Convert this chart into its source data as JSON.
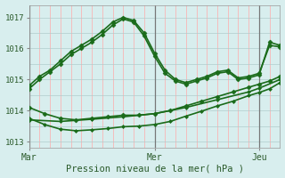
{
  "xlabel": "Pression niveau de la mer( hPa )",
  "bg_color": "#d8eeee",
  "line_color": "#1a6b1a",
  "ylim": [
    1012.8,
    1017.4
  ],
  "xlim": [
    0,
    48
  ],
  "xticks": [
    0,
    24,
    44
  ],
  "xtick_labels": [
    "Mar",
    "Mer",
    "Jeu"
  ],
  "yticks": [
    1013,
    1014,
    1015,
    1016,
    1017
  ],
  "series": [
    {
      "x": [
        0,
        2,
        4,
        6,
        8,
        10,
        12,
        14,
        16,
        18,
        20,
        22,
        24,
        26,
        28,
        30,
        32,
        34,
        36,
        38,
        40,
        42,
        44,
        46,
        48
      ],
      "y": [
        1014.8,
        1015.1,
        1015.3,
        1015.6,
        1015.9,
        1016.1,
        1016.3,
        1016.55,
        1016.85,
        1017.0,
        1016.9,
        1016.5,
        1015.85,
        1015.3,
        1015.0,
        1014.9,
        1015.0,
        1015.1,
        1015.25,
        1015.3,
        1015.05,
        1015.1,
        1015.2,
        1016.1,
        1016.05
      ],
      "marker": "D",
      "ms": 2.5,
      "lw": 1.2,
      "ls": "-"
    },
    {
      "x": [
        0,
        2,
        4,
        6,
        8,
        10,
        12,
        14,
        16,
        18,
        20,
        22,
        24,
        26,
        28,
        30,
        32,
        34,
        36,
        38,
        40,
        42,
        44,
        46,
        48
      ],
      "y": [
        1014.7,
        1015.0,
        1015.25,
        1015.5,
        1015.8,
        1016.0,
        1016.2,
        1016.45,
        1016.75,
        1016.95,
        1016.85,
        1016.4,
        1015.75,
        1015.2,
        1014.95,
        1014.85,
        1014.95,
        1015.05,
        1015.2,
        1015.25,
        1015.0,
        1015.05,
        1015.15,
        1016.2,
        1016.1
      ],
      "marker": "D",
      "ms": 2.5,
      "lw": 1.2,
      "ls": "-"
    },
    {
      "x": [
        0,
        3,
        6,
        9,
        12,
        15,
        18,
        21,
        24,
        27,
        30,
        33,
        36,
        39,
        42,
        44,
        46,
        48
      ],
      "y": [
        1014.1,
        1013.9,
        1013.75,
        1013.7,
        1013.75,
        1013.8,
        1013.85,
        1013.85,
        1013.9,
        1014.0,
        1014.15,
        1014.3,
        1014.45,
        1014.6,
        1014.75,
        1014.85,
        1014.95,
        1015.1
      ],
      "marker": "D",
      "ms": 2.5,
      "lw": 1.2,
      "ls": "-"
    },
    {
      "x": [
        0,
        3,
        6,
        9,
        12,
        15,
        18,
        21,
        24,
        27,
        30,
        33,
        36,
        39,
        42,
        44,
        46,
        48
      ],
      "y": [
        1013.75,
        1013.55,
        1013.4,
        1013.35,
        1013.38,
        1013.42,
        1013.48,
        1013.5,
        1013.55,
        1013.65,
        1013.82,
        1013.98,
        1014.15,
        1014.3,
        1014.48,
        1014.58,
        1014.7,
        1014.9
      ],
      "marker": "D",
      "ms": 2.0,
      "lw": 1.2,
      "ls": "-"
    },
    {
      "x": [
        0,
        6,
        12,
        18,
        24,
        30,
        36,
        42,
        44,
        48
      ],
      "y": [
        1013.7,
        1013.65,
        1013.72,
        1013.8,
        1013.9,
        1014.1,
        1014.35,
        1014.6,
        1014.72,
        1015.0
      ],
      "marker": "D",
      "ms": 2.0,
      "lw": 1.2,
      "ls": "-"
    }
  ]
}
